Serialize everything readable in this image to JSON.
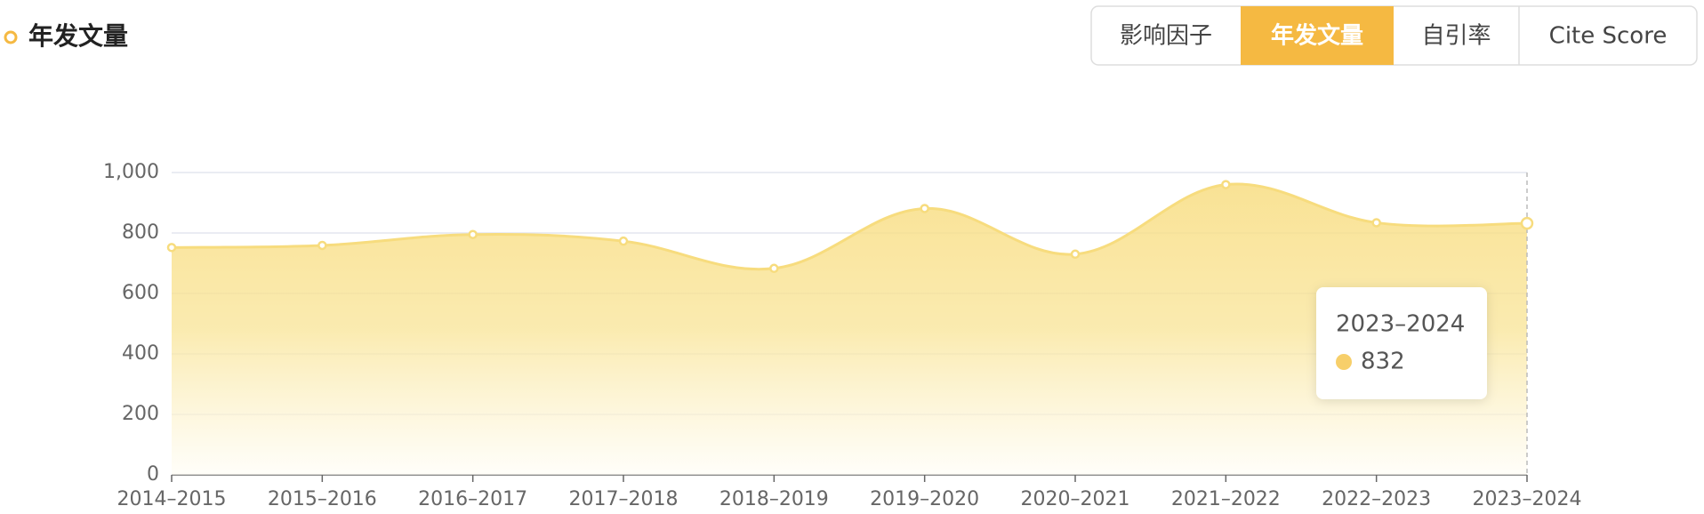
{
  "header": {
    "title": "年发文量"
  },
  "tabs": [
    "影响因子",
    "年发文量",
    "自引率",
    "Cite Score"
  ],
  "active_tab": 1,
  "chart_data": {
    "type": "area",
    "categories": [
      "2014–2015",
      "2015–2016",
      "2016–2017",
      "2017–2018",
      "2018–2019",
      "2019–2020",
      "2020–2021",
      "2021–2022",
      "2022–2023",
      "2023–2024"
    ],
    "values": [
      752,
      759,
      795,
      773,
      683,
      881,
      730,
      960,
      834,
      832
    ],
    "color": "#f7dc7e",
    "ylim": [
      0,
      1000
    ],
    "yticks": [
      0,
      200,
      400,
      600,
      {
        "value": 800,
        "label": "800"
      },
      {
        "value": 1000,
        "label": "1,000"
      }
    ],
    "grid": true,
    "tooltip_index": 9
  }
}
